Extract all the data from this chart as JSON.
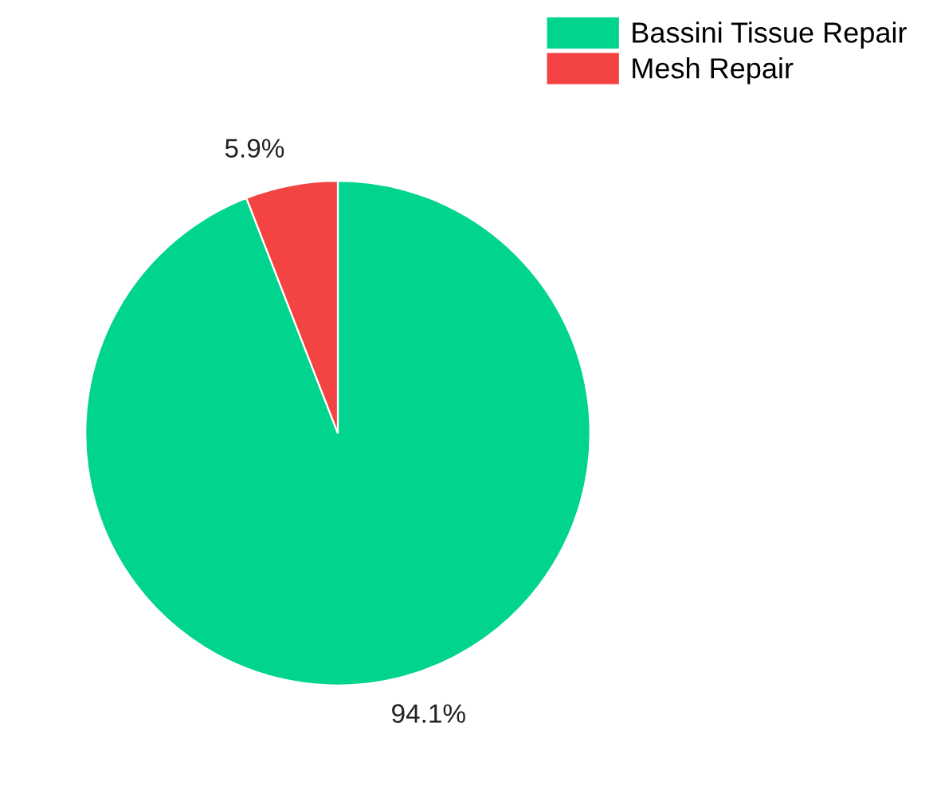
{
  "chart_data": {
    "type": "pie",
    "categories": [
      "Bassini Tissue Repair",
      "Mesh Repair"
    ],
    "values": [
      94.1,
      5.9
    ],
    "colors": [
      "#00d48f",
      "#f44343"
    ],
    "value_labels": [
      "94.1%",
      "5.9%"
    ],
    "legend": "top right"
  }
}
